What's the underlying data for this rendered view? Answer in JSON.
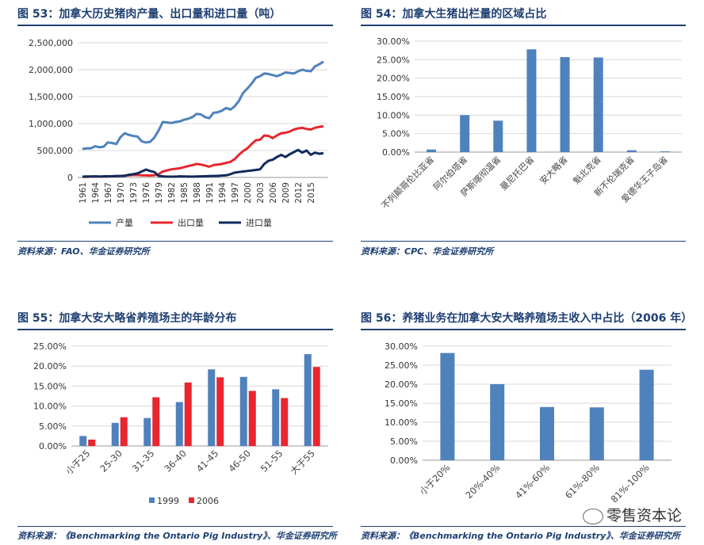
{
  "panels": [
    {
      "title": "图 53：加拿大历史猪肉产量、出口量和进口量（吨）",
      "source": "资料来源：FAO、华金证券研究所"
    },
    {
      "title": "图 54：加拿大生猪出栏量的区域占比",
      "source": "资料来源：CPC、华金证券研究所"
    },
    {
      "title": "图 55：加拿大安大略省养殖场主的年龄分布",
      "source": "资料来源：《Benchmarking the Ontario Pig Industry》、华金证券研究所"
    },
    {
      "title": "图 56：养猪业务在加拿大安大略养殖场主收入中占比（2006 年）",
      "source": "资料来源：《Benchmarking the Ontario Pig Industry》、华金证券研究所"
    }
  ],
  "watermark": {
    "text": "零售资本论",
    "icon": "wechat-icon"
  },
  "chart_data": [
    {
      "type": "line",
      "title": "图 53：加拿大历史猪肉产量、出口量和进口量（吨）",
      "xlabel": "",
      "ylabel": "",
      "x": [
        1961,
        1962,
        1963,
        1964,
        1965,
        1966,
        1967,
        1968,
        1969,
        1970,
        1971,
        1972,
        1973,
        1974,
        1975,
        1976,
        1977,
        1978,
        1979,
        1980,
        1981,
        1982,
        1983,
        1984,
        1985,
        1986,
        1987,
        1988,
        1989,
        1990,
        1991,
        1992,
        1993,
        1994,
        1995,
        1996,
        1997,
        1998,
        1999,
        2000,
        2001,
        2002,
        2003,
        2004,
        2005,
        2006,
        2007,
        2008,
        2009,
        2010,
        2011,
        2012,
        2013,
        2014,
        2015,
        2016,
        2017,
        2018
      ],
      "xticks": [
        "1961",
        "1964",
        "1967",
        "1970",
        "1973",
        "1976",
        "1979",
        "1982",
        "1985",
        "1988",
        "1991",
        "1994",
        "1997",
        "2000",
        "2003",
        "2006",
        "2009",
        "2012",
        "2015"
      ],
      "yticks": [
        "0",
        "500,000",
        "1,000,000",
        "1,500,000",
        "2,000,000",
        "2,500,000"
      ],
      "ylim": [
        0,
        2500000
      ],
      "grid": true,
      "legend_position": "bottom",
      "series": [
        {
          "name": "产量",
          "color": "#4f81bd",
          "values": [
            530000,
            540000,
            540000,
            580000,
            560000,
            570000,
            650000,
            640000,
            620000,
            750000,
            820000,
            790000,
            770000,
            760000,
            670000,
            650000,
            660000,
            740000,
            870000,
            1030000,
            1020000,
            1010000,
            1030000,
            1040000,
            1070000,
            1090000,
            1120000,
            1180000,
            1170000,
            1120000,
            1100000,
            1200000,
            1210000,
            1240000,
            1290000,
            1260000,
            1320000,
            1420000,
            1570000,
            1650000,
            1740000,
            1850000,
            1880000,
            1930000,
            1920000,
            1900000,
            1880000,
            1910000,
            1950000,
            1940000,
            1930000,
            1970000,
            2000000,
            1980000,
            1970000,
            2060000,
            2100000,
            2150000
          ]
        },
        {
          "name": "出口量",
          "color": "#e8262f",
          "values": [
            10000,
            12000,
            15000,
            18000,
            15000,
            14000,
            20000,
            22000,
            25000,
            28000,
            35000,
            40000,
            45000,
            45000,
            40000,
            38000,
            35000,
            40000,
            60000,
            110000,
            130000,
            150000,
            160000,
            170000,
            190000,
            210000,
            230000,
            250000,
            240000,
            220000,
            200000,
            230000,
            240000,
            250000,
            270000,
            290000,
            340000,
            420000,
            490000,
            540000,
            620000,
            690000,
            700000,
            780000,
            770000,
            730000,
            780000,
            820000,
            830000,
            850000,
            890000,
            910000,
            920000,
            900000,
            890000,
            920000,
            940000,
            950000
          ]
        },
        {
          "name": "进口量",
          "color": "#0f2a5c",
          "values": [
            15000,
            18000,
            17000,
            20000,
            18000,
            20000,
            22000,
            22000,
            25000,
            28000,
            30000,
            50000,
            60000,
            75000,
            110000,
            145000,
            120000,
            100000,
            30000,
            20000,
            15000,
            15000,
            15000,
            20000,
            18000,
            16000,
            15000,
            18000,
            20000,
            22000,
            25000,
            28000,
            30000,
            35000,
            40000,
            60000,
            90000,
            100000,
            110000,
            120000,
            130000,
            140000,
            150000,
            250000,
            310000,
            330000,
            380000,
            420000,
            380000,
            430000,
            470000,
            510000,
            460000,
            500000,
            420000,
            460000,
            440000,
            450000
          ]
        }
      ]
    },
    {
      "type": "bar",
      "title": "图 54：加拿大生猪出栏量的区域占比",
      "categories": [
        "不列颠哥伦比亚省",
        "阿尔伯塔省",
        "萨斯喀彻温省",
        "曼尼托巴省",
        "安大略省",
        "魁北克省",
        "新不伦瑞克省",
        "爱德华王子岛省"
      ],
      "values": [
        0.7,
        10.0,
        8.5,
        27.8,
        25.7,
        25.6,
        0.5,
        0.2
      ],
      "yticks": [
        "0.00%",
        "5.00%",
        "10.00%",
        "15.00%",
        "20.00%",
        "25.00%",
        "30.00%"
      ],
      "ylim": [
        0,
        30
      ],
      "grid": true,
      "color": "#4f81bd"
    },
    {
      "type": "bar",
      "title": "图 55：加拿大安大略省养殖场主的年龄分布",
      "categories": [
        "小于25",
        "25-30",
        "31-35",
        "36-40",
        "41-45",
        "46-50",
        "51-55",
        "大于55"
      ],
      "series": [
        {
          "name": "1999",
          "color": "#4f81bd",
          "values": [
            2.5,
            5.8,
            7.0,
            11.0,
            19.2,
            17.3,
            14.2,
            23.0
          ]
        },
        {
          "name": "2006",
          "color": "#e8262f",
          "values": [
            1.6,
            7.2,
            12.2,
            15.9,
            17.2,
            13.8,
            12.0,
            19.8
          ]
        }
      ],
      "yticks": [
        "0.00%",
        "5.00%",
        "10.00%",
        "15.00%",
        "20.00%",
        "25.00%"
      ],
      "ylim": [
        0,
        25
      ],
      "grid": true,
      "legend_position": "bottom"
    },
    {
      "type": "bar",
      "title": "图 56：养猪业务在加拿大安大略养殖场主收入中占比（2006 年）",
      "categories": [
        "小于20%",
        "20%-40%",
        "41%-60%",
        "61%-80%",
        "81%-100%"
      ],
      "values": [
        28.2,
        20.0,
        14.0,
        13.9,
        23.8
      ],
      "yticks": [
        "0.00%",
        "5.00%",
        "10.00%",
        "15.00%",
        "20.00%",
        "25.00%",
        "30.00%"
      ],
      "ylim": [
        0,
        30
      ],
      "grid": true,
      "color": "#4f81bd"
    }
  ]
}
